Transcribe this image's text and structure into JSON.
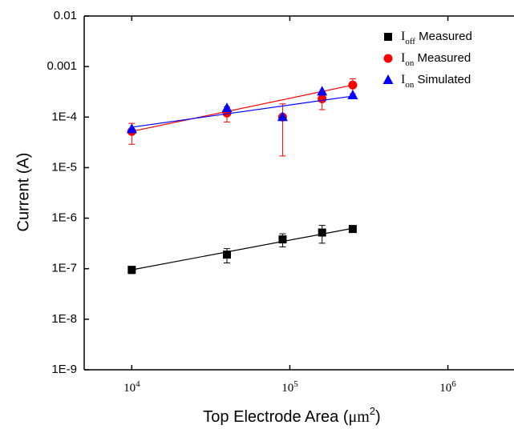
{
  "chart_data": {
    "type": "scatter",
    "xlabel": [
      "Top Electrode Area (",
      "μm",
      "2",
      ")"
    ],
    "ylabel": "Current (A)",
    "x": [
      10000,
      40000,
      90000,
      160000,
      250000
    ],
    "fit_x": [
      10000,
      250000
    ],
    "xscale": "log",
    "yscale": "log",
    "xlim": [
      5000,
      2500000
    ],
    "ylim": [
      1e-09,
      0.01
    ],
    "xticks": [
      {
        "value": 10000,
        "label": [
          "10",
          "4"
        ]
      },
      {
        "value": 100000,
        "label": [
          "10",
          "5"
        ]
      },
      {
        "value": 1000000,
        "label": [
          "10",
          "6"
        ]
      }
    ],
    "yticks": [
      {
        "value": 1e-09,
        "label": "1E-9"
      },
      {
        "value": 1e-08,
        "label": "1E-8"
      },
      {
        "value": 1e-07,
        "label": "1E-7"
      },
      {
        "value": 1e-06,
        "label": "1E-6"
      },
      {
        "value": 1e-05,
        "label": "1E-5"
      },
      {
        "value": 0.0001,
        "label": "1E-4"
      },
      0.001,
      0.01
    ],
    "legend": "upper right",
    "series": [
      {
        "name": [
          "I",
          "off",
          " Measured"
        ],
        "color": "#000000",
        "marker": "square",
        "values": [
          9.5e-08,
          1.9e-07,
          3.8e-07,
          5.2e-07,
          6.1e-07
        ],
        "errors": [
          1.5e-08,
          6e-08,
          1.1e-07,
          2e-07,
          2e-08
        ],
        "fit": [
          9.5e-08,
          6.3e-07
        ]
      },
      {
        "name": [
          "I",
          "on",
          " Measured"
        ],
        "color": "#ff0000",
        "marker": "circle",
        "values": [
          5.2e-05,
          0.00012,
          0.0001,
          0.00023,
          0.00043
        ],
        "errors": [
          2.3e-05,
          4e-05,
          8.3e-05,
          9e-05,
          0.00014
        ],
        "fit": [
          5.2e-05,
          0.00043
        ]
      },
      {
        "name": [
          "I",
          "on",
          " Simulated"
        ],
        "color": "#0000ff",
        "marker": "triangle",
        "values": [
          5.8e-05,
          0.00015,
          0.0001,
          0.00032,
          0.00027
        ],
        "fit": [
          6.3e-05,
          0.00026
        ]
      }
    ]
  }
}
